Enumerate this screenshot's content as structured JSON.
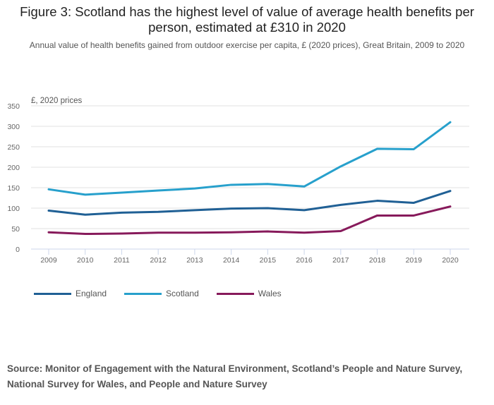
{
  "chart_data": {
    "type": "line",
    "title": "Figure 3: Scotland has the highest level of value of average health benefits per person, estimated at £310 in 2020",
    "subtitle": "Annual value of health benefits gained from outdoor exercise per capita, £ (2020 prices), Great Britain, 2009 to 2020",
    "ylabel": "£, 2020 prices",
    "xlabel": "",
    "ylim": [
      0,
      350
    ],
    "yticks": [
      0,
      50,
      100,
      150,
      200,
      250,
      300,
      350
    ],
    "grid": true,
    "legend_position": "bottom-left",
    "x": [
      "2009",
      "2010",
      "2011",
      "2012",
      "2013",
      "2014",
      "2015",
      "2016",
      "2017",
      "2018",
      "2019",
      "2020"
    ],
    "series": [
      {
        "name": "England",
        "color": "#206095",
        "values": [
          94,
          84,
          89,
          91,
          95,
          99,
          100,
          95,
          108,
          118,
          113,
          142
        ]
      },
      {
        "name": "Scotland",
        "color": "#27a0cc",
        "values": [
          146,
          133,
          138,
          143,
          148,
          157,
          159,
          153,
          202,
          245,
          244,
          310
        ]
      },
      {
        "name": "Wales",
        "color": "#871a5b",
        "values": [
          41,
          37,
          38,
          40,
          40,
          41,
          43,
          40,
          44,
          82,
          82,
          104
        ]
      }
    ]
  },
  "source": "Source: Monitor of Engagement with the Natural Environment, Scotland’s People and Nature Survey, National Survey for Wales, and People and Nature Survey"
}
